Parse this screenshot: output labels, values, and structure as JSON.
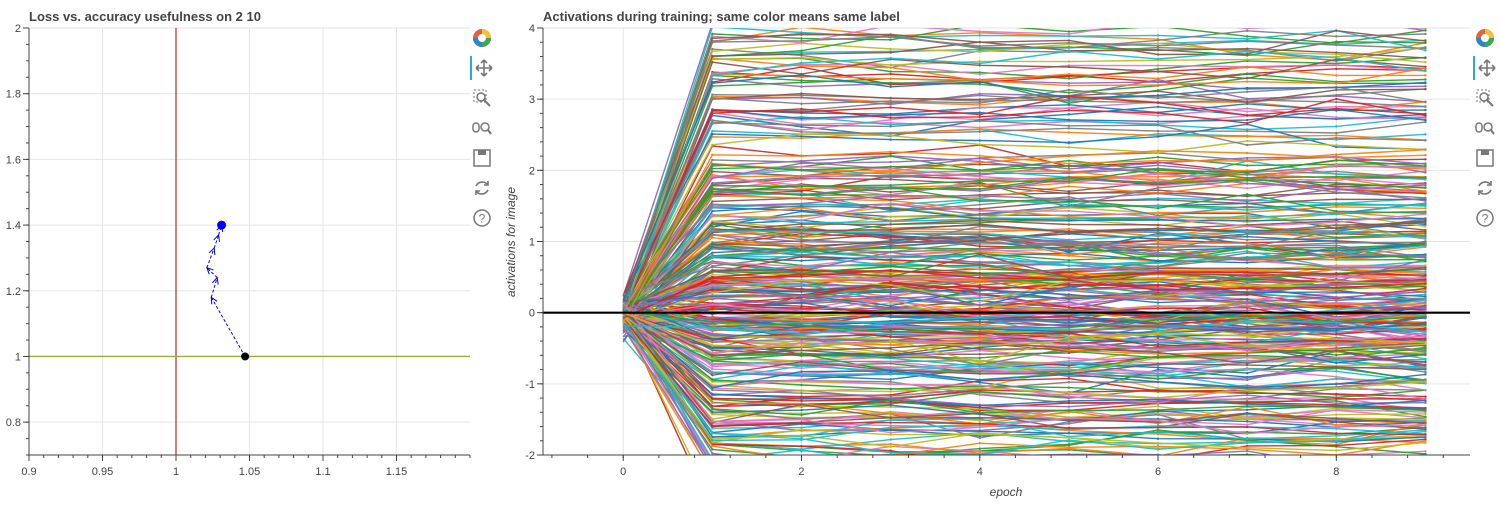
{
  "left": {
    "title": "Loss vs. accuracy usefulness on 2 10",
    "xlim": [
      0.9,
      1.2
    ],
    "ylim": [
      0.7,
      2.0
    ],
    "x_ticks": [
      "0.9",
      "0.95",
      "1",
      "1.05",
      "1.1",
      "1.15"
    ],
    "y_ticks": [
      "0.8",
      "1",
      "1.2",
      "1.4",
      "1.6",
      "1.8",
      "2"
    ],
    "vline_x": 1.0,
    "hline_y": 1.0,
    "vline_color": "#c0392b",
    "hline_color": "#9aab3a",
    "trajectory": [
      {
        "x": 1.047,
        "y": 1.0
      },
      {
        "x": 1.024,
        "y": 1.18
      },
      {
        "x": 1.028,
        "y": 1.24
      },
      {
        "x": 1.021,
        "y": 1.27
      },
      {
        "x": 1.026,
        "y": 1.33
      },
      {
        "x": 1.029,
        "y": 1.37
      },
      {
        "x": 1.031,
        "y": 1.4
      }
    ],
    "start_marker_color": "#000000",
    "end_marker_color": "#0000ff"
  },
  "right": {
    "title": "Activations during training; same color means same label",
    "xlabel": "epoch",
    "ylabel": "activations for image",
    "xlim": [
      -0.9,
      9.5
    ],
    "ylim": [
      -2,
      4
    ],
    "x_ticks": [
      "0",
      "2",
      "4",
      "6",
      "8"
    ],
    "y_ticks": [
      "-2",
      "-1",
      "0",
      "1",
      "2",
      "3",
      "4"
    ],
    "epochs": [
      0,
      1,
      2,
      3,
      4,
      5,
      6,
      7,
      8,
      9
    ],
    "zero_line": 0,
    "palette": [
      "#1f77b4",
      "#ff7f0e",
      "#2ca02c",
      "#d62728",
      "#9467bd",
      "#8c564b",
      "#e377c2",
      "#7f7f7f",
      "#bcbd22",
      "#17becf"
    ],
    "n_series": 320
  },
  "toolbar": {
    "logo": "bokeh-logo-icon",
    "tools": [
      "pan-icon",
      "box-zoom-icon",
      "wheel-zoom-icon",
      "save-icon",
      "reset-icon",
      "help-icon"
    ],
    "active_tool": "pan-icon",
    "accent_color": "#26aae1"
  }
}
